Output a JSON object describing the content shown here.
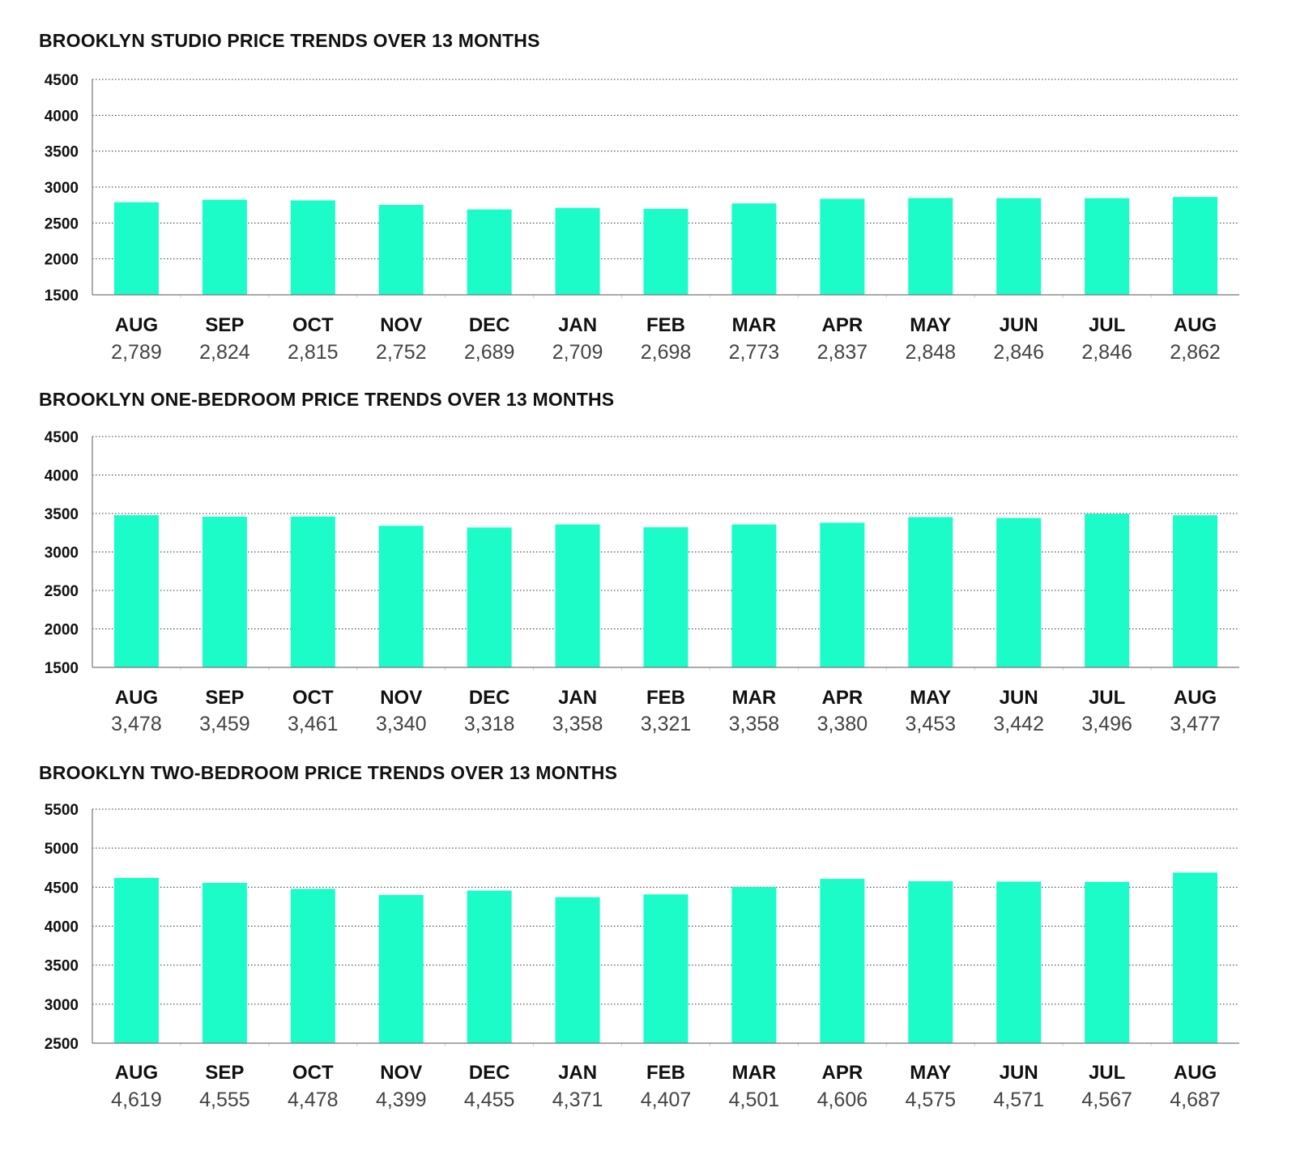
{
  "chart_data": [
    {
      "type": "bar",
      "title": "BROOKLYN STUDIO PRICE TRENDS OVER 13 MONTHS",
      "categories": [
        "AUG",
        "SEP",
        "OCT",
        "NOV",
        "DEC",
        "JAN",
        "FEB",
        "MAR",
        "APR",
        "MAY",
        "JUN",
        "JUL",
        "AUG"
      ],
      "values": [
        2789,
        2824,
        2815,
        2752,
        2689,
        2709,
        2698,
        2773,
        2837,
        2848,
        2846,
        2846,
        2862
      ],
      "value_labels": [
        "2,789",
        "2,824",
        "2,815",
        "2,752",
        "2,689",
        "2,709",
        "2,698",
        "2,773",
        "2,837",
        "2,848",
        "2,846",
        "2,846",
        "2,862"
      ],
      "y_ticks": [
        "4500",
        "4000",
        "3500",
        "3000",
        "2500",
        "2000",
        "1500"
      ],
      "ylim": [
        1500,
        4500
      ],
      "grid": true,
      "bar_color": "#1cfcc8"
    },
    {
      "type": "bar",
      "title": "BROOKLYN ONE-BEDROOM PRICE TRENDS OVER 13 MONTHS",
      "categories": [
        "AUG",
        "SEP",
        "OCT",
        "NOV",
        "DEC",
        "JAN",
        "FEB",
        "MAR",
        "APR",
        "MAY",
        "JUN",
        "JUL",
        "AUG"
      ],
      "values": [
        3478,
        3459,
        3461,
        3340,
        3318,
        3358,
        3321,
        3358,
        3380,
        3453,
        3442,
        3496,
        3477
      ],
      "value_labels": [
        "3,478",
        "3,459",
        "3,461",
        "3,340",
        "3,318",
        "3,358",
        "3,321",
        "3,358",
        "3,380",
        "3,453",
        "3,442",
        "3,496",
        "3,477"
      ],
      "y_ticks": [
        "4500",
        "4000",
        "3500",
        "3000",
        "2500",
        "2000",
        "1500"
      ],
      "ylim": [
        1500,
        4500
      ],
      "grid": true,
      "bar_color": "#1cfcc8"
    },
    {
      "type": "bar",
      "title": "BROOKLYN TWO-BEDROOM PRICE TRENDS OVER 13 MONTHS",
      "categories": [
        "AUG",
        "SEP",
        "OCT",
        "NOV",
        "DEC",
        "JAN",
        "FEB",
        "MAR",
        "APR",
        "MAY",
        "JUN",
        "JUL",
        "AUG"
      ],
      "values": [
        4619,
        4555,
        4478,
        4399,
        4455,
        4371,
        4407,
        4501,
        4606,
        4575,
        4571,
        4567,
        4687
      ],
      "value_labels": [
        "4,619",
        "4,555",
        "4,478",
        "4,399",
        "4,455",
        "4,371",
        "4,407",
        "4,501",
        "4,606",
        "4,575",
        "4,571",
        "4,567",
        "4,687"
      ],
      "y_ticks": [
        "5500",
        "5000",
        "4500",
        "4000",
        "3500",
        "3000",
        "2500"
      ],
      "ylim": [
        2500,
        5500
      ],
      "grid": true,
      "bar_color": "#1cfcc8"
    }
  ]
}
